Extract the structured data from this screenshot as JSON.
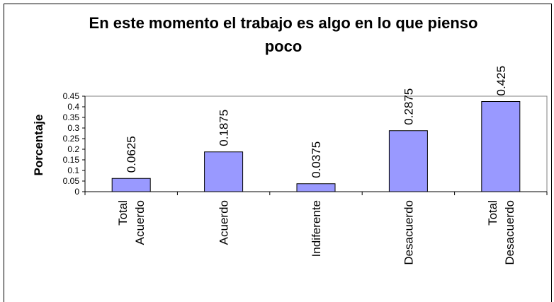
{
  "chart_data": {
    "type": "bar",
    "title": "En este momento el trabajo es algo en lo que pienso poco",
    "y_label": "Porcentaje",
    "categories": [
      "Total Acuerdo",
      "Acuerdo",
      "Indiferente",
      "Desacuerdo",
      "Total Desacuerdo"
    ],
    "values": [
      0.0625,
      0.1875,
      0.0375,
      0.2875,
      0.425
    ],
    "color": "#9999ff",
    "ylim": [
      0,
      0.45
    ],
    "yticks": [
      0,
      0.05,
      0.1,
      0.15,
      0.2,
      0.25,
      0.3,
      0.35,
      0.4,
      0.45
    ],
    "grid": false
  }
}
